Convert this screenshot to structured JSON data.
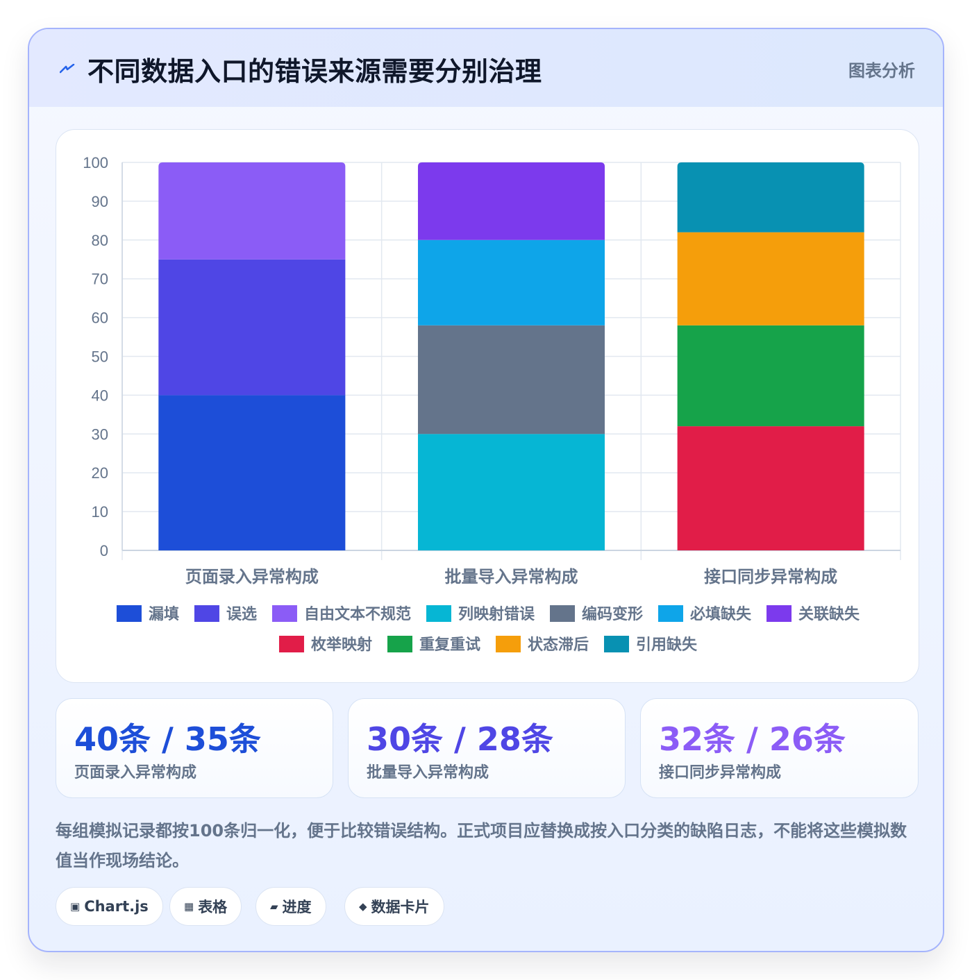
{
  "header": {
    "title": "不同数据入口的错误来源需要分别治理",
    "tag": "图表分析"
  },
  "chart_data": {
    "type": "bar",
    "stacked": true,
    "categories": [
      "页面录入异常构成",
      "批量导入异常构成",
      "接口同步异常构成"
    ],
    "ylim": [
      0,
      100
    ],
    "yticks": [
      0,
      10,
      20,
      30,
      40,
      50,
      60,
      70,
      80,
      90,
      100
    ],
    "grid": true,
    "legend_position": "bottom",
    "series": [
      {
        "name": "漏填",
        "color": "#1d4ed8",
        "values": [
          40,
          0,
          0
        ]
      },
      {
        "name": "误选",
        "color": "#4f46e5",
        "values": [
          35,
          0,
          0
        ]
      },
      {
        "name": "自由文本不规范",
        "color": "#8b5cf6",
        "values": [
          25,
          0,
          0
        ]
      },
      {
        "name": "列映射错误",
        "color": "#06b6d4",
        "values": [
          0,
          30,
          0
        ]
      },
      {
        "name": "编码变形",
        "color": "#64748b",
        "values": [
          0,
          28,
          0
        ]
      },
      {
        "name": "必填缺失",
        "color": "#0ea5e9",
        "values": [
          0,
          22,
          0
        ]
      },
      {
        "name": "关联缺失",
        "color": "#7c3aed",
        "values": [
          0,
          20,
          0
        ]
      },
      {
        "name": "枚举映射",
        "color": "#e11d48",
        "values": [
          0,
          0,
          32
        ]
      },
      {
        "name": "重复重试",
        "color": "#16a34a",
        "values": [
          0,
          0,
          26
        ]
      },
      {
        "name": "状态滞后",
        "color": "#f59e0b",
        "values": [
          0,
          0,
          24
        ]
      },
      {
        "name": "引用缺失",
        "color": "#0891b2",
        "values": [
          0,
          0,
          18
        ]
      }
    ]
  },
  "stats": [
    {
      "value": "40条 / 35条",
      "label": "页面录入异常构成",
      "color": "#1d4ed8"
    },
    {
      "value": "30条 / 28条",
      "label": "批量导入异常构成",
      "color": "#4f46e5"
    },
    {
      "value": "32条 / 26条",
      "label": "接口同步异常构成",
      "color": "#8b5cf6"
    }
  ],
  "note": "每组模拟记录都按100条归一化，便于比较错误结构。正式项目应替换成按入口分类的缺陷日志，不能将这些模拟数值当作现场结论。",
  "chips": [
    {
      "icon": "▣",
      "label": "Chart.js"
    },
    {
      "icon": "▦",
      "label": "表格"
    },
    {
      "icon": "▰",
      "label": "进度"
    },
    {
      "icon": "◆",
      "label": "数据卡片"
    }
  ]
}
